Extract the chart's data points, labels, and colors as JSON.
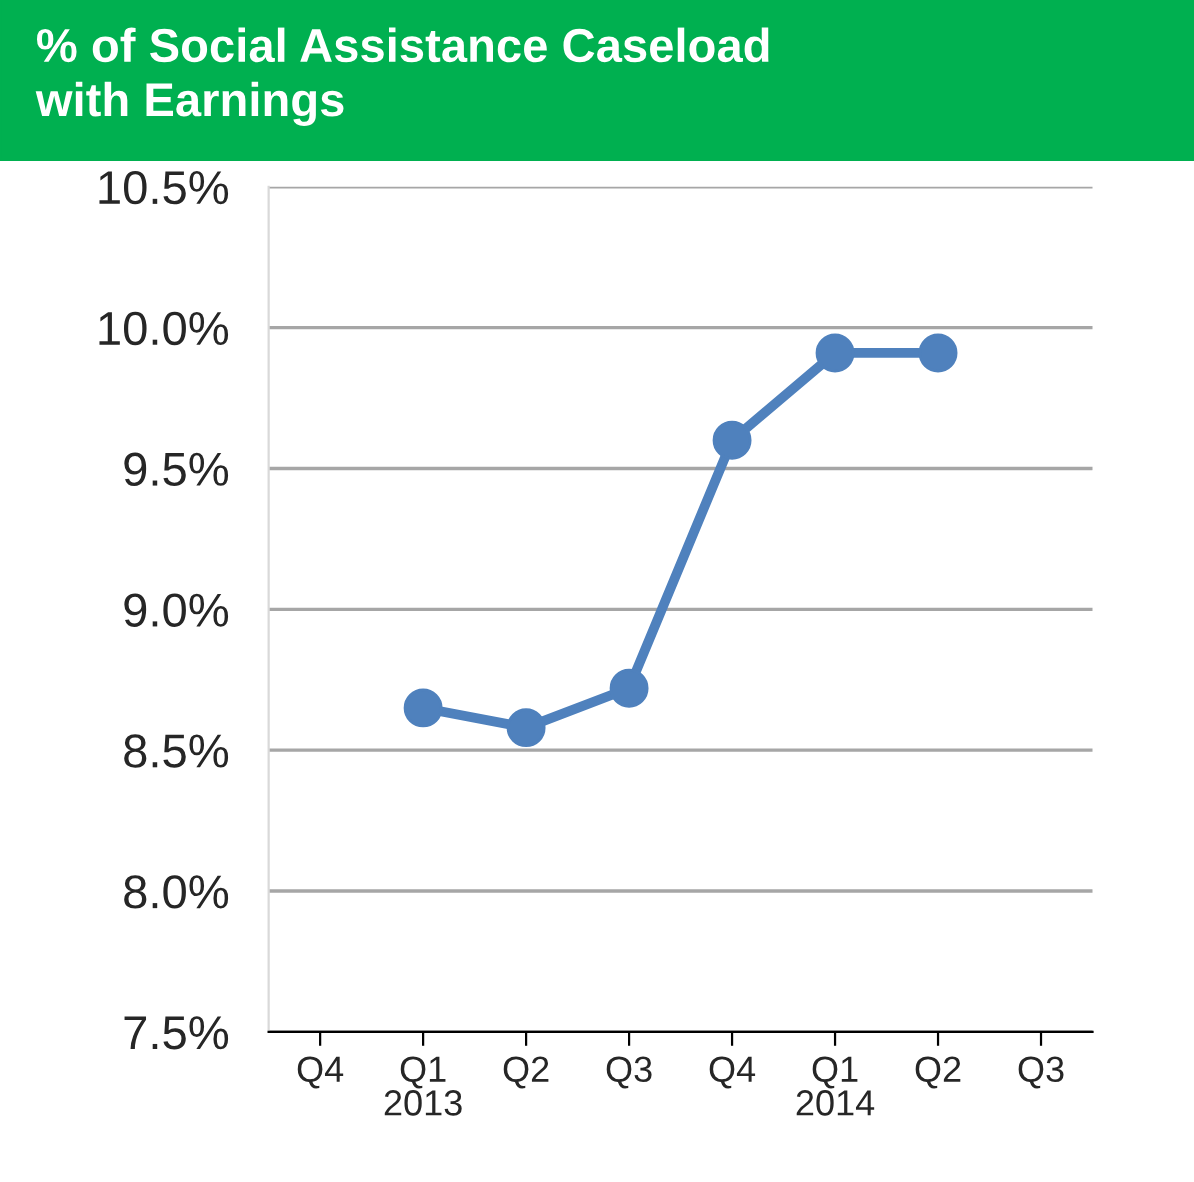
{
  "chart_data": {
    "type": "line",
    "title": "% of Social Assistance Caseload\nwith Earnings",
    "categories": [
      "Q4",
      "Q1\n2013",
      "Q2",
      "Q3",
      "Q4",
      "Q1\n2014",
      "Q2",
      "Q3"
    ],
    "series": [
      {
        "color": "#4f81bd",
        "values": [
          null,
          8.65,
          8.58,
          8.72,
          9.6,
          9.91,
          9.91,
          null
        ]
      }
    ],
    "ylim": [
      7.5,
      10.5
    ],
    "yticks": [
      {
        "value": 7.5,
        "label": "7.5%"
      },
      {
        "value": 8.0,
        "label": "8.0%"
      },
      {
        "value": 8.5,
        "label": "8.5%"
      },
      {
        "value": 9.0,
        "label": "9.0%"
      },
      {
        "value": 9.5,
        "label": "9.5%"
      },
      {
        "value": 10.0,
        "label": "10.0%"
      },
      {
        "value": 10.5,
        "label": "10.5%"
      }
    ],
    "grid": "y",
    "marker": "circle",
    "line_style": "solid"
  }
}
